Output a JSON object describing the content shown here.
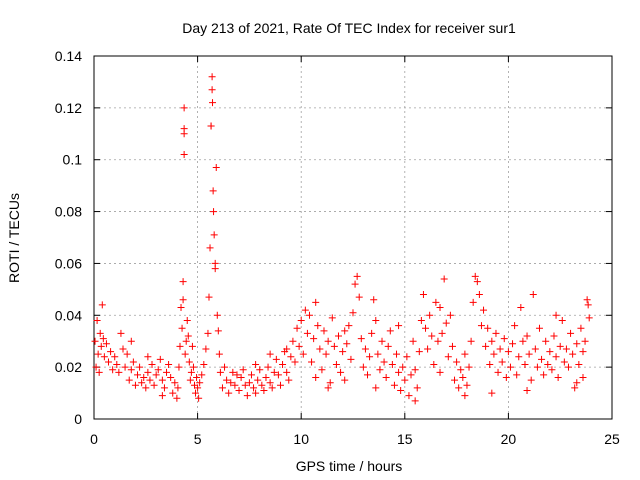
{
  "chart_data": {
    "type": "scatter",
    "title": "Day 213 of 2021, Rate Of TEC Index for receiver sur1",
    "xlabel": "GPS time / hours",
    "ylabel": "ROTI / TECUs",
    "xlim": [
      0,
      25
    ],
    "ylim": [
      0,
      0.14
    ],
    "x_ticks": [
      "0",
      "5",
      "10",
      "15",
      "20",
      "25"
    ],
    "y_ticks": [
      "0",
      "0.02",
      "0.04",
      "0.06",
      "0.08",
      "0.1",
      "0.12",
      "0.14"
    ],
    "grid": true,
    "marker": "plus",
    "color": "#ff0000",
    "series": [
      {
        "points": [
          [
            0.05,
            0.03
          ],
          [
            0.1,
            0.02
          ],
          [
            0.15,
            0.038
          ],
          [
            0.2,
            0.025
          ],
          [
            0.25,
            0.018
          ],
          [
            0.3,
            0.033
          ],
          [
            0.35,
            0.028
          ],
          [
            0.4,
            0.044
          ],
          [
            0.45,
            0.031
          ],
          [
            0.5,
            0.024
          ],
          [
            0.6,
            0.029
          ],
          [
            0.7,
            0.022
          ],
          [
            0.8,
            0.026
          ],
          [
            0.9,
            0.019
          ],
          [
            1.0,
            0.024
          ],
          [
            1.1,
            0.021
          ],
          [
            1.2,
            0.018
          ],
          [
            1.3,
            0.033
          ],
          [
            1.4,
            0.027
          ],
          [
            1.5,
            0.02
          ],
          [
            1.6,
            0.025
          ],
          [
            1.7,
            0.015
          ],
          [
            1.8,
            0.019
          ],
          [
            1.9,
            0.022
          ],
          [
            2.0,
            0.013
          ],
          [
            2.1,
            0.017
          ],
          [
            2.2,
            0.02
          ],
          [
            2.3,
            0.014
          ],
          [
            2.4,
            0.016
          ],
          [
            2.5,
            0.012
          ],
          [
            2.6,
            0.018
          ],
          [
            2.7,
            0.015
          ],
          [
            2.8,
            0.021
          ],
          [
            2.9,
            0.013
          ],
          [
            3.0,
            0.017
          ],
          [
            3.1,
            0.019
          ],
          [
            3.2,
            0.023
          ],
          [
            3.3,
            0.015
          ],
          [
            3.4,
            0.012
          ],
          [
            3.5,
            0.018
          ],
          [
            3.6,
            0.021
          ],
          [
            3.7,
            0.016
          ],
          [
            3.8,
            0.01
          ],
          [
            3.9,
            0.014
          ],
          [
            4.0,
            0.008
          ],
          [
            4.05,
            0.012
          ],
          [
            4.1,
            0.02
          ],
          [
            4.15,
            0.028
          ],
          [
            4.2,
            0.043
          ],
          [
            4.25,
            0.035
          ],
          [
            4.3,
            0.053
          ],
          [
            4.3,
            0.046
          ],
          [
            4.35,
            0.102
          ],
          [
            4.35,
            0.11
          ],
          [
            4.35,
            0.112
          ],
          [
            4.35,
            0.12
          ],
          [
            4.4,
            0.025
          ],
          [
            4.45,
            0.03
          ],
          [
            4.5,
            0.038
          ],
          [
            4.55,
            0.032
          ],
          [
            4.6,
            0.022
          ],
          [
            4.65,
            0.015
          ],
          [
            4.7,
            0.018
          ],
          [
            4.75,
            0.028
          ],
          [
            4.8,
            0.02
          ],
          [
            4.85,
            0.013
          ],
          [
            4.9,
            0.01
          ],
          [
            4.95,
            0.016
          ],
          [
            5.0,
            0.012
          ],
          [
            5.05,
            0.008
          ],
          [
            5.1,
            0.014
          ],
          [
            5.2,
            0.017
          ],
          [
            5.3,
            0.021
          ],
          [
            5.4,
            0.027
          ],
          [
            5.5,
            0.033
          ],
          [
            5.55,
            0.047
          ],
          [
            5.6,
            0.066
          ],
          [
            5.65,
            0.113
          ],
          [
            5.65,
            0.113
          ],
          [
            5.7,
            0.132
          ],
          [
            5.7,
            0.127
          ],
          [
            5.72,
            0.122
          ],
          [
            5.75,
            0.088
          ],
          [
            5.77,
            0.08
          ],
          [
            5.8,
            0.071
          ],
          [
            5.85,
            0.06
          ],
          [
            5.85,
            0.058
          ],
          [
            5.9,
            0.097
          ],
          [
            5.95,
            0.04
          ],
          [
            6.0,
            0.034
          ],
          [
            6.05,
            0.025
          ],
          [
            6.1,
            0.018
          ],
          [
            6.2,
            0.012
          ],
          [
            6.3,
            0.02
          ],
          [
            6.4,
            0.015
          ],
          [
            6.5,
            0.01
          ],
          [
            6.6,
            0.014
          ],
          [
            6.7,
            0.018
          ],
          [
            6.8,
            0.013
          ],
          [
            6.9,
            0.017
          ],
          [
            7.0,
            0.011
          ],
          [
            7.1,
            0.016
          ],
          [
            7.2,
            0.019
          ],
          [
            7.3,
            0.013
          ],
          [
            7.4,
            0.009
          ],
          [
            7.5,
            0.014
          ],
          [
            7.6,
            0.017
          ],
          [
            7.7,
            0.012
          ],
          [
            7.8,
            0.01
          ],
          [
            7.9,
            0.015
          ],
          [
            8.0,
            0.019
          ],
          [
            8.1,
            0.013
          ],
          [
            8.2,
            0.011
          ],
          [
            8.3,
            0.016
          ],
          [
            8.4,
            0.02
          ],
          [
            8.5,
            0.014
          ],
          [
            8.6,
            0.012
          ],
          [
            8.7,
            0.018
          ],
          [
            8.8,
            0.023
          ],
          [
            8.9,
            0.017
          ],
          [
            9.0,
            0.013
          ],
          [
            9.1,
            0.021
          ],
          [
            9.2,
            0.026
          ],
          [
            9.3,
            0.018
          ],
          [
            9.4,
            0.015
          ],
          [
            9.5,
            0.024
          ],
          [
            9.6,
            0.03
          ],
          [
            9.7,
            0.022
          ],
          [
            9.8,
            0.035
          ],
          [
            9.9,
            0.028
          ],
          [
            10.0,
            0.038
          ],
          [
            10.1,
            0.025
          ],
          [
            10.2,
            0.042
          ],
          [
            10.3,
            0.033
          ],
          [
            10.4,
            0.04
          ],
          [
            10.5,
            0.022
          ],
          [
            10.6,
            0.031
          ],
          [
            10.7,
            0.016
          ],
          [
            10.8,
            0.036
          ],
          [
            10.9,
            0.027
          ],
          [
            11.0,
            0.019
          ],
          [
            11.1,
            0.034
          ],
          [
            11.2,
            0.025
          ],
          [
            11.3,
            0.03
          ],
          [
            11.4,
            0.014
          ],
          [
            11.5,
            0.039
          ],
          [
            11.6,
            0.028
          ],
          [
            11.7,
            0.021
          ],
          [
            11.8,
            0.032
          ],
          [
            11.9,
            0.018
          ],
          [
            12.0,
            0.026
          ],
          [
            12.1,
            0.015
          ],
          [
            12.2,
            0.029
          ],
          [
            12.3,
            0.036
          ],
          [
            12.4,
            0.023
          ],
          [
            12.5,
            0.041
          ],
          [
            12.6,
            0.052
          ],
          [
            12.7,
            0.055
          ],
          [
            12.8,
            0.047
          ],
          [
            12.9,
            0.031
          ],
          [
            13.0,
            0.02
          ],
          [
            13.1,
            0.027
          ],
          [
            13.2,
            0.017
          ],
          [
            13.3,
            0.024
          ],
          [
            13.4,
            0.033
          ],
          [
            13.5,
            0.046
          ],
          [
            13.6,
            0.038
          ],
          [
            13.7,
            0.025
          ],
          [
            13.8,
            0.019
          ],
          [
            13.9,
            0.03
          ],
          [
            14.0,
            0.022
          ],
          [
            14.1,
            0.016
          ],
          [
            14.2,
            0.028
          ],
          [
            14.3,
            0.034
          ],
          [
            14.4,
            0.021
          ],
          [
            14.5,
            0.013
          ],
          [
            14.6,
            0.025
          ],
          [
            14.7,
            0.018
          ],
          [
            14.8,
            0.011
          ],
          [
            14.9,
            0.02
          ],
          [
            15.0,
            0.015
          ],
          [
            15.1,
            0.024
          ],
          [
            15.2,
            0.009
          ],
          [
            15.3,
            0.017
          ],
          [
            15.4,
            0.03
          ],
          [
            15.5,
            0.019
          ],
          [
            15.6,
            0.012
          ],
          [
            15.7,
            0.026
          ],
          [
            15.8,
            0.038
          ],
          [
            15.9,
            0.048
          ],
          [
            16.0,
            0.035
          ],
          [
            16.1,
            0.027
          ],
          [
            16.2,
            0.04
          ],
          [
            16.3,
            0.032
          ],
          [
            16.4,
            0.021
          ],
          [
            16.5,
            0.045
          ],
          [
            16.6,
            0.03
          ],
          [
            16.7,
            0.018
          ],
          [
            16.8,
            0.033
          ],
          [
            16.9,
            0.054
          ],
          [
            17.0,
            0.037
          ],
          [
            17.1,
            0.024
          ],
          [
            17.2,
            0.04
          ],
          [
            17.3,
            0.028
          ],
          [
            17.4,
            0.015
          ],
          [
            17.5,
            0.022
          ],
          [
            17.6,
            0.012
          ],
          [
            17.7,
            0.019
          ],
          [
            17.8,
            0.016
          ],
          [
            17.9,
            0.025
          ],
          [
            18.0,
            0.013
          ],
          [
            18.1,
            0.02
          ],
          [
            18.2,
            0.03
          ],
          [
            18.3,
            0.045
          ],
          [
            18.4,
            0.055
          ],
          [
            18.5,
            0.053
          ],
          [
            18.6,
            0.048
          ],
          [
            18.7,
            0.036
          ],
          [
            18.8,
            0.042
          ],
          [
            18.9,
            0.028
          ],
          [
            19.0,
            0.035
          ],
          [
            19.1,
            0.021
          ],
          [
            19.2,
            0.03
          ],
          [
            19.3,
            0.025
          ],
          [
            19.4,
            0.033
          ],
          [
            19.5,
            0.018
          ],
          [
            19.6,
            0.027
          ],
          [
            19.7,
            0.022
          ],
          [
            19.8,
            0.031
          ],
          [
            19.9,
            0.016
          ],
          [
            20.0,
            0.026
          ],
          [
            20.1,
            0.02
          ],
          [
            20.2,
            0.029
          ],
          [
            20.3,
            0.036
          ],
          [
            20.4,
            0.017
          ],
          [
            20.5,
            0.024
          ],
          [
            20.6,
            0.043
          ],
          [
            20.7,
            0.03
          ],
          [
            20.8,
            0.021
          ],
          [
            20.9,
            0.032
          ],
          [
            21.0,
            0.025
          ],
          [
            21.1,
            0.015
          ],
          [
            21.2,
            0.048
          ],
          [
            21.3,
            0.027
          ],
          [
            21.4,
            0.02
          ],
          [
            21.5,
            0.035
          ],
          [
            21.6,
            0.023
          ],
          [
            21.7,
            0.017
          ],
          [
            21.8,
            0.03
          ],
          [
            21.9,
            0.021
          ],
          [
            22.0,
            0.026
          ],
          [
            22.1,
            0.019
          ],
          [
            22.2,
            0.032
          ],
          [
            22.3,
            0.024
          ],
          [
            22.4,
            0.016
          ],
          [
            22.5,
            0.028
          ],
          [
            22.6,
            0.038
          ],
          [
            22.7,
            0.022
          ],
          [
            22.8,
            0.027
          ],
          [
            22.9,
            0.02
          ],
          [
            23.0,
            0.033
          ],
          [
            23.1,
            0.025
          ],
          [
            23.2,
            0.012
          ],
          [
            23.3,
            0.029
          ],
          [
            23.4,
            0.021
          ],
          [
            23.5,
            0.035
          ],
          [
            23.6,
            0.026
          ],
          [
            23.7,
            0.03
          ],
          [
            23.8,
            0.046
          ],
          [
            23.85,
            0.044
          ],
          [
            23.9,
            0.039
          ],
          [
            23.6,
            0.016
          ],
          [
            1.8,
            0.03
          ],
          [
            2.6,
            0.024
          ],
          [
            3.3,
            0.009
          ],
          [
            7.8,
            0.021
          ],
          [
            8.5,
            0.025
          ],
          [
            9.3,
            0.027
          ],
          [
            10.7,
            0.045
          ],
          [
            11.3,
            0.012
          ],
          [
            12.1,
            0.034
          ],
          [
            13.6,
            0.012
          ],
          [
            14.7,
            0.036
          ],
          [
            15.5,
            0.007
          ],
          [
            16.7,
            0.043
          ],
          [
            17.9,
            0.009
          ],
          [
            19.2,
            0.01
          ],
          [
            20.9,
            0.011
          ],
          [
            22.3,
            0.04
          ],
          [
            23.3,
            0.014
          ]
        ]
      }
    ]
  }
}
